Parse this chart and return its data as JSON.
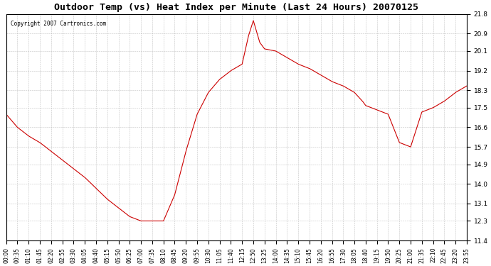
{
  "title": "Outdoor Temp (vs) Heat Index per Minute (Last 24 Hours) 20070125",
  "copyright": "Copyright 2007 Cartronics.com",
  "line_color": "#cc0000",
  "bg_color": "#ffffff",
  "grid_color": "#aaaaaa",
  "ylim": [
    11.4,
    21.8
  ],
  "yticks": [
    11.4,
    12.3,
    13.1,
    14.0,
    14.9,
    15.7,
    16.6,
    17.5,
    18.3,
    19.2,
    20.1,
    20.9,
    21.8
  ],
  "xtick_labels": [
    "00:00",
    "00:35",
    "01:10",
    "01:45",
    "02:20",
    "02:55",
    "03:30",
    "04:05",
    "04:40",
    "05:15",
    "05:50",
    "06:25",
    "07:00",
    "07:35",
    "08:10",
    "08:45",
    "09:20",
    "09:55",
    "10:30",
    "11:05",
    "11:40",
    "12:15",
    "12:50",
    "13:25",
    "14:00",
    "14:35",
    "15:10",
    "15:45",
    "16:20",
    "16:55",
    "17:30",
    "18:05",
    "18:40",
    "19:15",
    "19:50",
    "20:25",
    "21:00",
    "21:35",
    "22:10",
    "22:45",
    "23:20",
    "23:55"
  ],
  "data_x": [
    0,
    35,
    70,
    105,
    140,
    175,
    210,
    245,
    280,
    315,
    350,
    385,
    420,
    455,
    490,
    525,
    560,
    595,
    630,
    665,
    700,
    735,
    770,
    805,
    840,
    875,
    910,
    945,
    980,
    1015,
    1050,
    1085,
    1120,
    1155,
    1190,
    1225,
    1260,
    1295,
    1330,
    1365,
    1400,
    1435
  ],
  "data_y": [
    17.2,
    16.6,
    16.2,
    15.9,
    15.5,
    15.1,
    14.7,
    14.3,
    13.8,
    13.3,
    12.9,
    12.5,
    12.3,
    12.3,
    12.3,
    13.5,
    15.5,
    17.2,
    18.2,
    18.8,
    19.2,
    19.5,
    21.5,
    20.2,
    20.1,
    19.8,
    19.5,
    19.3,
    19.0,
    18.5,
    18.2,
    18.0,
    17.6,
    17.4,
    17.2,
    15.9,
    15.7,
    17.5,
    17.6,
    17.8,
    18.2,
    18.3
  ]
}
